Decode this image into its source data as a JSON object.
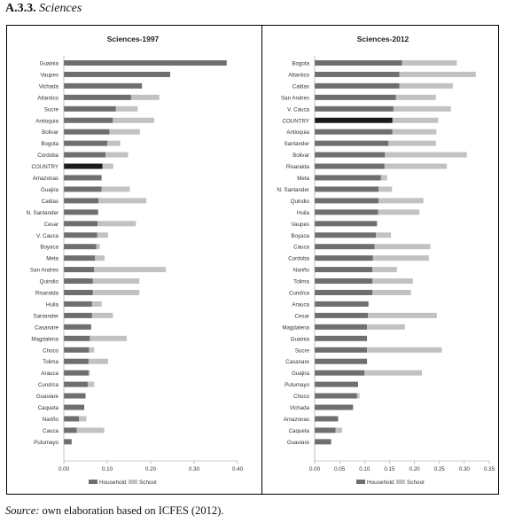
{
  "heading": {
    "number": "A.3.3.",
    "title": "Sciences"
  },
  "source": {
    "label": "Source:",
    "text": " own elaboration based on ICFES (2012)."
  },
  "colors": {
    "household": "#6f6f6f",
    "school": "#c2c2c2",
    "country": "#1a1a1a"
  },
  "chart_data": [
    {
      "type": "bar",
      "orientation": "horizontal",
      "stacked": true,
      "title": "Sciences-1997",
      "xlim": [
        0,
        0.4
      ],
      "xticks": [
        "0.00",
        "0.10",
        "0.20",
        "0.30",
        "0.40"
      ],
      "legend": {
        "position": "bottom",
        "entries": [
          "Household",
          "School"
        ]
      },
      "highlight": "COUNTRY",
      "categories": [
        "Guainia",
        "Vaupes",
        "Vichada",
        "Atlantico",
        "Sucre",
        "Antioquia",
        "Bolivar",
        "Bogota",
        "Cordoba",
        "COUNTRY",
        "Amazonas",
        "Guajira",
        "Caldas",
        "N. Santander",
        "Cesar",
        "V. Cauca",
        "Boyaca",
        "Meta",
        "San Andres",
        "Quindio",
        "Risaralda",
        "Huila",
        "Santander",
        "Casanare",
        "Magdalena",
        "Choco",
        "Tolima",
        "Arauca",
        "Cund/ca",
        "Guaviare",
        "Caqueta",
        "Nariño",
        "Cauca",
        "Putumayo"
      ],
      "series": [
        {
          "name": "Household",
          "values": [
            0.375,
            0.245,
            0.18,
            0.155,
            0.12,
            0.113,
            0.105,
            0.1,
            0.096,
            0.089,
            0.087,
            0.087,
            0.08,
            0.079,
            0.078,
            0.077,
            0.075,
            0.072,
            0.07,
            0.067,
            0.067,
            0.065,
            0.065,
            0.063,
            0.06,
            0.058,
            0.057,
            0.057,
            0.055,
            0.05,
            0.047,
            0.035,
            0.03,
            0.018
          ]
        },
        {
          "name": "School",
          "values": [
            0,
            0,
            0,
            0.065,
            0.05,
            0.095,
            0.07,
            0.03,
            0.052,
            0.025,
            0,
            0.065,
            0.11,
            0,
            0.088,
            0.025,
            0.008,
            0.022,
            0.165,
            0.107,
            0.107,
            0.022,
            0.048,
            0,
            0.085,
            0.012,
            0.045,
            0.003,
            0.015,
            0,
            0,
            0.017,
            0.063,
            0
          ]
        }
      ]
    },
    {
      "type": "bar",
      "orientation": "horizontal",
      "stacked": true,
      "title": "Sciences-2012",
      "xlim": [
        0,
        0.35
      ],
      "xticks": [
        "0.00",
        "0.05",
        "0.10",
        "0.15",
        "0.20",
        "0.25",
        "0.30",
        "0.35"
      ],
      "legend": {
        "position": "bottom",
        "entries": [
          "Household",
          "School"
        ]
      },
      "highlight": "COUNTRY",
      "categories": [
        "Bogota",
        "Atlantico",
        "Caldas",
        "San Andres",
        "V. Cauca",
        "COUNTRY",
        "Antioquia",
        "Santander",
        "Bolivar",
        "Risaralda",
        "Meta",
        "N. Santander",
        "Quindio",
        "Huila",
        "Vaupes",
        "Boyaca",
        "Cauca",
        "Cordoba",
        "Nariño",
        "Tolima",
        "Cund/ca",
        "Arauca",
        "Cesar",
        "Magdalena",
        "Guainia",
        "Sucre",
        "Casanare",
        "Guajira",
        "Putumayo",
        "Choco",
        "Vichada",
        "Amazonas",
        "Caqueta",
        "Guaviare"
      ],
      "series": [
        {
          "name": "Household",
          "values": [
            0.175,
            0.17,
            0.17,
            0.163,
            0.158,
            0.156,
            0.156,
            0.148,
            0.141,
            0.14,
            0.133,
            0.128,
            0.128,
            0.127,
            0.125,
            0.123,
            0.12,
            0.117,
            0.116,
            0.116,
            0.116,
            0.108,
            0.107,
            0.105,
            0.105,
            0.105,
            0.105,
            0.1,
            0.087,
            0.085,
            0.077,
            0.047,
            0.042,
            0.033
          ]
        },
        {
          "name": "School",
          "values": [
            0.11,
            0.153,
            0.107,
            0.08,
            0.115,
            0.092,
            0.088,
            0.095,
            0.164,
            0.125,
            0.012,
            0.027,
            0.09,
            0.083,
            0,
            0.03,
            0.112,
            0.112,
            0.049,
            0.081,
            0.077,
            0,
            0.138,
            0.076,
            0,
            0.15,
            0,
            0.115,
            0,
            0.005,
            0,
            0,
            0.013,
            0
          ]
        }
      ]
    }
  ]
}
